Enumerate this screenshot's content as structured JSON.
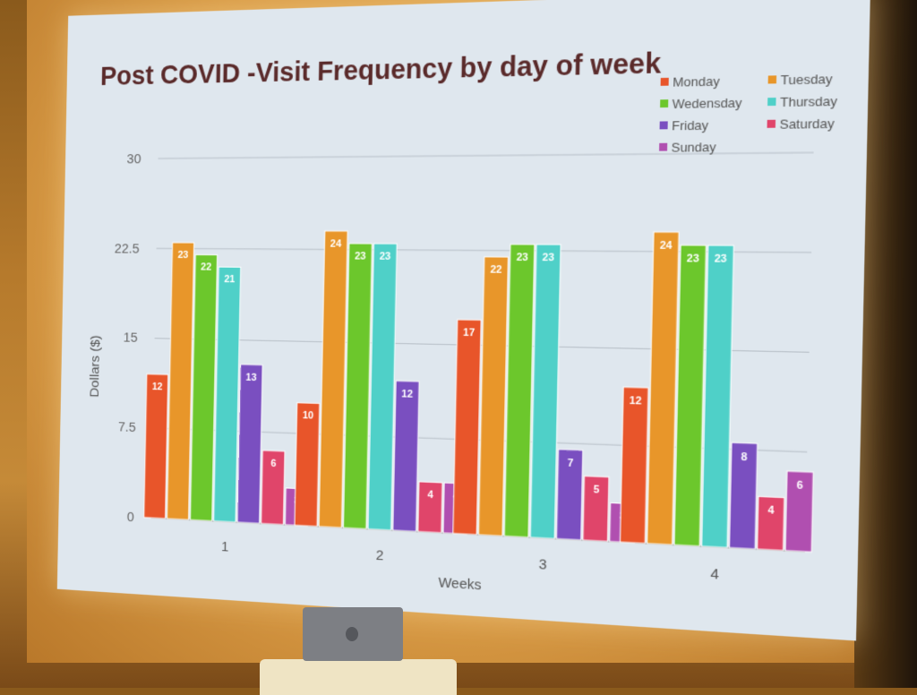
{
  "chart_data": {
    "type": "bar",
    "title": "Post COVID -Visit Frequency by day of week",
    "xlabel": "Weeks",
    "ylabel": "Dollars ($)",
    "ylim": [
      0,
      30
    ],
    "yticks": [
      "0",
      "7.5",
      "15",
      "22.5",
      "30"
    ],
    "grid": true,
    "legend_placement": "top-right",
    "categories": [
      "1",
      "2",
      "3",
      "4"
    ],
    "series": [
      {
        "name": "Monday",
        "color": "#e8552a",
        "values": [
          12,
          10,
          17,
          12
        ]
      },
      {
        "name": "Tuesday",
        "color": "#e8962a",
        "values": [
          23,
          24,
          22,
          24
        ]
      },
      {
        "name": "Wedensday",
        "color": "#6cc72c",
        "values": [
          22,
          23,
          23,
          23
        ]
      },
      {
        "name": "Thursday",
        "color": "#4fd0c8",
        "values": [
          21,
          23,
          23,
          23
        ]
      },
      {
        "name": "Friday",
        "color": "#7a4fc0",
        "values": [
          13,
          12,
          7,
          8
        ]
      },
      {
        "name": "Saturday",
        "color": "#e0456a",
        "values": [
          6,
          4,
          5,
          4
        ]
      },
      {
        "name": "Sunday",
        "color": "#b04fb0",
        "values": [
          3,
          4,
          3,
          6
        ]
      }
    ]
  }
}
